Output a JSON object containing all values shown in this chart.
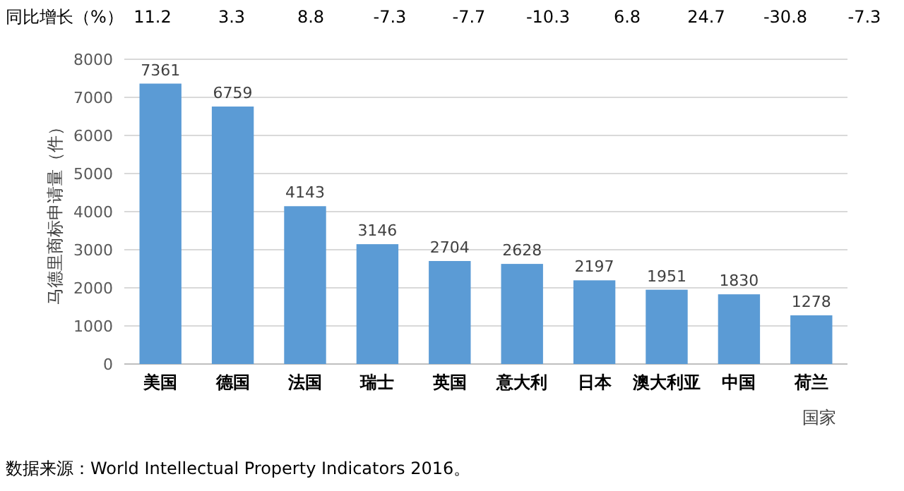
{
  "chart_data": {
    "type": "bar",
    "ylabel": "马德里商标申请量（件）",
    "xlabel": "国家",
    "categories": [
      "美国",
      "德国",
      "法国",
      "瑞士",
      "英国",
      "意大利",
      "日本",
      "澳大利亚",
      "中国",
      "荷兰"
    ],
    "values": [
      7361,
      6759,
      4143,
      3146,
      2704,
      2628,
      2197,
      1951,
      1830,
      1278
    ],
    "color": "#5b9bd5",
    "ylim": [
      0,
      8000
    ],
    "yticks": [
      0,
      1000,
      2000,
      3000,
      4000,
      5000,
      6000,
      7000,
      8000
    ],
    "grid": "y",
    "data_labels": true,
    "annotations": [
      "同比增长（%）",
      "11.2",
      "3.3",
      "8.8",
      "-7.3",
      "-7.7",
      "-10.3",
      "6.8",
      "24.7",
      "-30.8",
      "-7.3",
      "数据来源：World Intellectual Property Indicators 2016。"
    ]
  }
}
